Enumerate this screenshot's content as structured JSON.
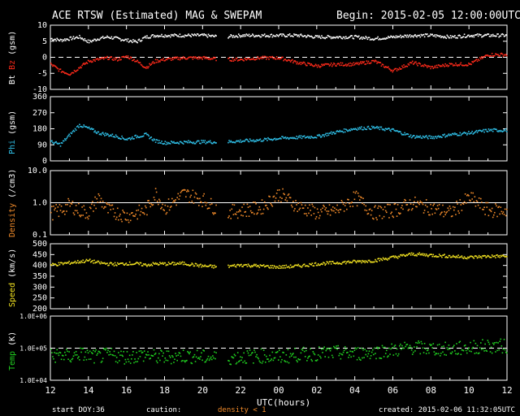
{
  "header": {
    "title": "ACE RTSW (Estimated) MAG & SWEPAM",
    "begin": "Begin: 2015-02-05 12:00:00UTC"
  },
  "footer": {
    "start_doy_label": "start DOY:",
    "start_doy": "36",
    "caution": "caution:",
    "density_note": "density < 1",
    "created": "created: 2015-02-06 11:32:05UTC"
  },
  "colors": {
    "bt": "#ffffff",
    "bz": "#ff2a1a",
    "phi": "#2fc0e8",
    "density": "#f08a2a",
    "speed": "#f0e020",
    "temp": "#20d020"
  },
  "chart_data": [
    {
      "type": "scatter",
      "ylabel_parts": [
        "Bt",
        "Bz",
        "(gsm)"
      ],
      "ylim": [
        -10,
        10
      ],
      "yticks": [
        "10",
        "5",
        "0",
        "-5",
        "-10"
      ],
      "ytick_values": [
        10,
        5,
        0,
        -5,
        -10
      ],
      "reference_line": 0,
      "series": [
        {
          "name": "Bt",
          "color": "#ffffff",
          "x": [
            12,
            12.5,
            13,
            13.5,
            14,
            14.5,
            15,
            15.5,
            16,
            16.5,
            17,
            17.5,
            18,
            19,
            20,
            21,
            22,
            23,
            24,
            25,
            26,
            27,
            28,
            29,
            30,
            31,
            32,
            33,
            34,
            35
          ],
          "y": [
            6,
            5.5,
            6,
            6.5,
            5,
            6,
            6.5,
            6,
            5.5,
            5,
            6.5,
            7,
            7,
            7,
            7,
            6.5,
            7,
            7,
            7,
            7,
            6.5,
            6.5,
            6.5,
            6,
            6.5,
            7,
            7,
            6.5,
            7,
            7
          ]
        },
        {
          "name": "Bz",
          "color": "#ff2a1a",
          "x": [
            12,
            12.5,
            13,
            13.5,
            14,
            14.5,
            15,
            15.5,
            16,
            16.5,
            17,
            17.5,
            18,
            19,
            20,
            21,
            22,
            23,
            24,
            25,
            26,
            27,
            28,
            29,
            30,
            31,
            32,
            33,
            34,
            35
          ],
          "y": [
            -2,
            -4,
            -5,
            -3,
            -1,
            -0.5,
            0,
            -0.5,
            0.5,
            -1,
            -3,
            -1,
            -0.5,
            0,
            0,
            -0.5,
            -0.5,
            0,
            0,
            -1.5,
            -2.5,
            -2,
            -2,
            -1,
            -4,
            -1.5,
            -3,
            -2,
            -2,
            1
          ]
        }
      ]
    },
    {
      "type": "scatter",
      "ylabel_parts": [
        "Phi",
        "(gsm)"
      ],
      "ylim": [
        0,
        360
      ],
      "yticks": [
        "360",
        "270",
        "180",
        "90",
        "0"
      ],
      "ytick_values": [
        360,
        270,
        180,
        90,
        0
      ],
      "series": [
        {
          "name": "Phi",
          "color": "#2fc0e8",
          "x": [
            12,
            12.5,
            13,
            13.5,
            14,
            14.5,
            15,
            15.5,
            16,
            16.5,
            17,
            17.5,
            18,
            19,
            20,
            21,
            22,
            23,
            24,
            25,
            26,
            27,
            28,
            29,
            30,
            31,
            32,
            33,
            34,
            35
          ],
          "y": [
            110,
            95,
            150,
            205,
            185,
            160,
            150,
            140,
            125,
            140,
            150,
            115,
            105,
            108,
            110,
            108,
            115,
            120,
            130,
            135,
            140,
            165,
            185,
            190,
            175,
            140,
            135,
            150,
            160,
            175
          ]
        }
      ]
    },
    {
      "type": "scatter",
      "ylabel_parts": [
        "Density",
        "(/cm3)"
      ],
      "yscale": "log",
      "ylim": [
        0.1,
        10
      ],
      "yticks": [
        "10.0",
        "1.0",
        "0.1"
      ],
      "ytick_values": [
        10,
        1,
        0.1
      ],
      "reference_line": 1,
      "series": [
        {
          "name": "Density",
          "color": "#f08a2a",
          "x": [
            12,
            12.5,
            13,
            13.5,
            14,
            14.5,
            15,
            15.5,
            16,
            16.5,
            17,
            17.5,
            18,
            19,
            20,
            21,
            22,
            23,
            24,
            25,
            26,
            27,
            28,
            29,
            30,
            31,
            32,
            33,
            34,
            35
          ],
          "y": [
            0.5,
            0.6,
            0.9,
            0.6,
            0.5,
            1.5,
            0.6,
            0.5,
            0.4,
            0.5,
            0.6,
            2,
            0.7,
            2,
            1.3,
            0.5,
            0.6,
            0.7,
            2,
            0.8,
            0.5,
            0.6,
            1.5,
            0.5,
            0.6,
            1,
            0.7,
            0.5,
            1.5,
            0.6
          ]
        }
      ]
    },
    {
      "type": "scatter",
      "ylabel_parts": [
        "Speed",
        "(km/s)"
      ],
      "ylim": [
        200,
        500
      ],
      "yticks": [
        "500",
        "450",
        "400",
        "350",
        "300",
        "250",
        "200"
      ],
      "ytick_values": [
        500,
        450,
        400,
        350,
        300,
        250,
        200
      ],
      "series": [
        {
          "name": "Speed",
          "color": "#f0e020",
          "x": [
            12,
            12.5,
            13,
            13.5,
            14,
            14.5,
            15,
            15.5,
            16,
            16.5,
            17,
            17.5,
            18,
            19,
            20,
            21,
            22,
            23,
            24,
            25,
            26,
            27,
            28,
            29,
            30,
            31,
            32,
            33,
            34,
            35
          ],
          "y": [
            405,
            410,
            415,
            420,
            425,
            415,
            410,
            408,
            412,
            410,
            405,
            410,
            410,
            412,
            400,
            395,
            405,
            400,
            395,
            400,
            410,
            415,
            420,
            425,
            440,
            455,
            450,
            445,
            440,
            445
          ]
        }
      ]
    },
    {
      "type": "scatter",
      "ylabel_parts": [
        "Temp",
        "(K)"
      ],
      "yscale": "log",
      "ylim": [
        10000,
        1000000
      ],
      "yticks": [
        "1.0E+06",
        "1.0E+05",
        "1.0E+04"
      ],
      "ytick_values": [
        1000000,
        100000,
        10000
      ],
      "reference_line": 100000,
      "series": [
        {
          "name": "Temp",
          "color": "#20d020",
          "x": [
            12,
            12.5,
            13,
            13.5,
            14,
            14.5,
            15,
            15.5,
            16,
            16.5,
            17,
            17.5,
            18,
            19,
            20,
            21,
            22,
            23,
            24,
            25,
            26,
            27,
            28,
            29,
            30,
            31,
            32,
            33,
            34,
            35
          ],
          "y": [
            60000,
            65000,
            55000,
            70000,
            60000,
            55000,
            65000,
            60000,
            55000,
            60000,
            65000,
            55000,
            55000,
            60000,
            55000,
            50000,
            55000,
            60000,
            55000,
            65000,
            70000,
            75000,
            70000,
            80000,
            90000,
            110000,
            100000,
            95000,
            110000,
            120000
          ]
        }
      ]
    }
  ],
  "xaxis": {
    "label": "UTC(hours)",
    "range": [
      12,
      36
    ],
    "ticks": [
      "12",
      "14",
      "16",
      "18",
      "20",
      "22",
      "00",
      "02",
      "04",
      "06",
      "08",
      "10",
      "12"
    ],
    "tick_values": [
      12,
      14,
      16,
      18,
      20,
      22,
      24,
      26,
      28,
      30,
      32,
      34,
      36
    ]
  }
}
